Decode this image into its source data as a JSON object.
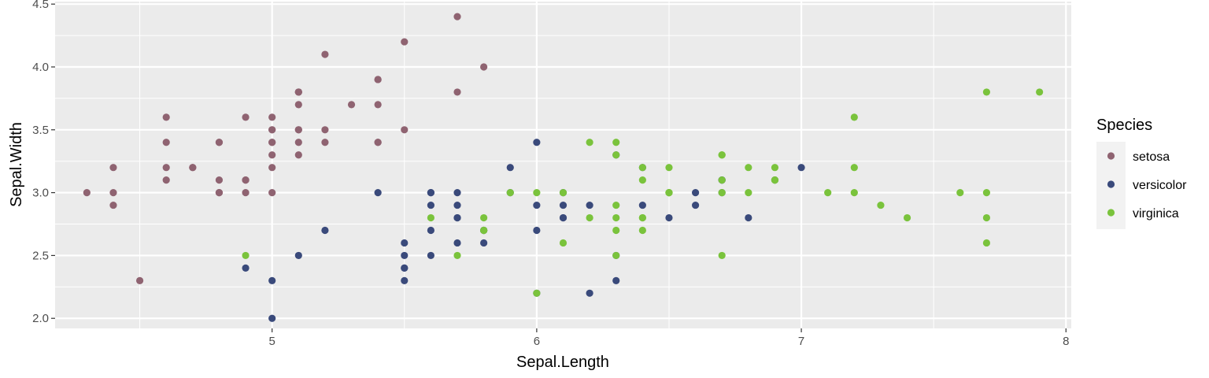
{
  "chart_data": {
    "type": "scatter",
    "title": "",
    "xlabel": "Sepal.Length",
    "ylabel": "Sepal.Width",
    "xlim": [
      4.18,
      8.02
    ],
    "ylim": [
      1.92,
      4.52
    ],
    "x_ticks": [
      5,
      6,
      7,
      8
    ],
    "x_tick_labels": [
      "5",
      "6",
      "7",
      "8"
    ],
    "y_ticks": [
      2.0,
      2.5,
      3.0,
      3.5,
      4.0,
      4.5
    ],
    "y_tick_labels": [
      "2.0",
      "2.5",
      "3.0",
      "3.5",
      "4.0",
      "4.5"
    ],
    "grid": true,
    "legend": {
      "title": "Species",
      "position": "right"
    },
    "panel_color": "#ebebeb",
    "grid_color": "#ffffff",
    "series": [
      {
        "name": "setosa",
        "color": "#8f6371",
        "points": [
          [
            5.1,
            3.5
          ],
          [
            4.9,
            3.0
          ],
          [
            4.7,
            3.2
          ],
          [
            4.6,
            3.1
          ],
          [
            5.0,
            3.6
          ],
          [
            5.4,
            3.9
          ],
          [
            4.6,
            3.4
          ],
          [
            5.0,
            3.4
          ],
          [
            4.4,
            2.9
          ],
          [
            4.9,
            3.1
          ],
          [
            5.4,
            3.7
          ],
          [
            4.8,
            3.4
          ],
          [
            4.8,
            3.0
          ],
          [
            4.3,
            3.0
          ],
          [
            5.8,
            4.0
          ],
          [
            5.7,
            4.4
          ],
          [
            5.4,
            3.9
          ],
          [
            5.1,
            3.5
          ],
          [
            5.7,
            3.8
          ],
          [
            5.1,
            3.8
          ],
          [
            5.4,
            3.4
          ],
          [
            5.1,
            3.7
          ],
          [
            4.6,
            3.6
          ],
          [
            5.1,
            3.3
          ],
          [
            4.8,
            3.4
          ],
          [
            5.0,
            3.0
          ],
          [
            5.0,
            3.4
          ],
          [
            5.2,
            3.5
          ],
          [
            5.2,
            3.4
          ],
          [
            4.7,
            3.2
          ],
          [
            4.8,
            3.1
          ],
          [
            5.4,
            3.4
          ],
          [
            5.2,
            4.1
          ],
          [
            5.5,
            4.2
          ],
          [
            4.9,
            3.1
          ],
          [
            5.0,
            3.2
          ],
          [
            5.5,
            3.5
          ],
          [
            4.9,
            3.6
          ],
          [
            4.4,
            3.0
          ],
          [
            5.1,
            3.4
          ],
          [
            5.0,
            3.5
          ],
          [
            4.5,
            2.3
          ],
          [
            4.4,
            3.2
          ],
          [
            5.0,
            3.5
          ],
          [
            5.1,
            3.8
          ],
          [
            4.8,
            3.0
          ],
          [
            5.1,
            3.8
          ],
          [
            4.6,
            3.2
          ],
          [
            5.3,
            3.7
          ],
          [
            5.0,
            3.3
          ]
        ]
      },
      {
        "name": "versicolor",
        "color": "#3a4a7b",
        "points": [
          [
            7.0,
            3.2
          ],
          [
            6.4,
            3.2
          ],
          [
            6.9,
            3.1
          ],
          [
            5.5,
            2.3
          ],
          [
            6.5,
            2.8
          ],
          [
            5.7,
            2.8
          ],
          [
            6.3,
            3.3
          ],
          [
            4.9,
            2.4
          ],
          [
            6.6,
            2.9
          ],
          [
            5.2,
            2.7
          ],
          [
            5.0,
            2.0
          ],
          [
            5.9,
            3.0
          ],
          [
            6.0,
            2.2
          ],
          [
            6.1,
            2.9
          ],
          [
            5.6,
            2.9
          ],
          [
            6.7,
            3.1
          ],
          [
            5.6,
            3.0
          ],
          [
            5.8,
            2.7
          ],
          [
            6.2,
            2.2
          ],
          [
            5.6,
            2.5
          ],
          [
            5.9,
            3.2
          ],
          [
            6.1,
            2.8
          ],
          [
            6.3,
            2.5
          ],
          [
            6.1,
            2.8
          ],
          [
            6.4,
            2.9
          ],
          [
            6.6,
            3.0
          ],
          [
            6.8,
            2.8
          ],
          [
            6.7,
            3.0
          ],
          [
            6.0,
            2.9
          ],
          [
            5.7,
            2.6
          ],
          [
            5.5,
            2.4
          ],
          [
            5.5,
            2.4
          ],
          [
            5.8,
            2.7
          ],
          [
            6.0,
            2.7
          ],
          [
            5.4,
            3.0
          ],
          [
            6.0,
            3.4
          ],
          [
            6.7,
            3.1
          ],
          [
            6.3,
            2.3
          ],
          [
            5.6,
            3.0
          ],
          [
            5.5,
            2.5
          ],
          [
            5.5,
            2.6
          ],
          [
            6.1,
            3.0
          ],
          [
            5.8,
            2.6
          ],
          [
            5.0,
            2.3
          ],
          [
            5.6,
            2.7
          ],
          [
            5.7,
            3.0
          ],
          [
            5.7,
            2.9
          ],
          [
            6.2,
            2.9
          ],
          [
            5.1,
            2.5
          ],
          [
            5.7,
            2.8
          ]
        ]
      },
      {
        "name": "virginica",
        "color": "#7ac33c",
        "points": [
          [
            6.3,
            3.3
          ],
          [
            5.8,
            2.7
          ],
          [
            7.1,
            3.0
          ],
          [
            6.3,
            2.9
          ],
          [
            6.5,
            3.0
          ],
          [
            7.6,
            3.0
          ],
          [
            4.9,
            2.5
          ],
          [
            7.3,
            2.9
          ],
          [
            6.7,
            2.5
          ],
          [
            7.2,
            3.6
          ],
          [
            6.5,
            3.2
          ],
          [
            6.4,
            2.7
          ],
          [
            6.8,
            3.0
          ],
          [
            5.7,
            2.5
          ],
          [
            5.8,
            2.8
          ],
          [
            6.4,
            3.2
          ],
          [
            6.5,
            3.0
          ],
          [
            7.7,
            3.8
          ],
          [
            7.7,
            2.6
          ],
          [
            6.0,
            2.2
          ],
          [
            6.9,
            3.2
          ],
          [
            5.6,
            2.8
          ],
          [
            7.7,
            2.8
          ],
          [
            6.3,
            2.7
          ],
          [
            6.7,
            3.3
          ],
          [
            7.2,
            3.2
          ],
          [
            6.2,
            2.8
          ],
          [
            6.1,
            3.0
          ],
          [
            6.4,
            2.8
          ],
          [
            7.2,
            3.0
          ],
          [
            7.4,
            2.8
          ],
          [
            7.9,
            3.8
          ],
          [
            6.4,
            2.8
          ],
          [
            6.3,
            2.8
          ],
          [
            6.1,
            2.6
          ],
          [
            7.7,
            3.0
          ],
          [
            6.3,
            3.4
          ],
          [
            6.4,
            3.1
          ],
          [
            6.0,
            3.0
          ],
          [
            6.9,
            3.1
          ],
          [
            6.7,
            3.1
          ],
          [
            6.9,
            3.1
          ],
          [
            5.8,
            2.7
          ],
          [
            6.8,
            3.2
          ],
          [
            6.7,
            3.3
          ],
          [
            6.7,
            3.0
          ],
          [
            6.3,
            2.5
          ],
          [
            6.5,
            3.0
          ],
          [
            6.2,
            3.4
          ],
          [
            5.9,
            3.0
          ]
        ]
      }
    ]
  }
}
